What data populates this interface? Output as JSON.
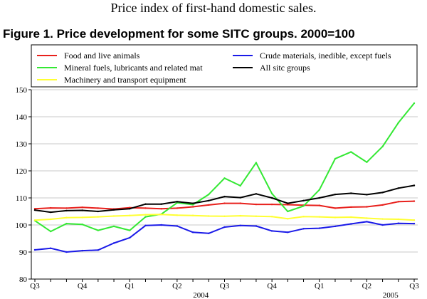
{
  "page": {
    "caption": "Price index of first-hand domestic sales.",
    "figure_title": "Figure 1. Price development for some SITC groups. 2000=100"
  },
  "chart_data": {
    "type": "line",
    "title": "Figure 1. Price development for some SITC groups. 2000=100",
    "xlabel": "",
    "ylabel": "",
    "ylim": [
      80,
      150
    ],
    "yticks": [
      80,
      90,
      100,
      110,
      120,
      130,
      140,
      150
    ],
    "grid": true,
    "legend_position": "top",
    "x": [
      "2003-09",
      "2003-10",
      "2003-11",
      "2003-12",
      "2004-01",
      "2004-02",
      "2004-03",
      "2004-04",
      "2004-05",
      "2004-06",
      "2004-07",
      "2004-08",
      "2004-09",
      "2004-10",
      "2004-11",
      "2004-12",
      "2005-01",
      "2005-02",
      "2005-03",
      "2005-04",
      "2005-05",
      "2005-06",
      "2005-07",
      "2005-08",
      "2005-09"
    ],
    "quarter_labels": [
      {
        "index": 0,
        "label": "Q3"
      },
      {
        "index": 3,
        "label": "Q4"
      },
      {
        "index": 6,
        "label": "Q1"
      },
      {
        "index": 9,
        "label": "Q2"
      },
      {
        "index": 12,
        "label": "Q3"
      },
      {
        "index": 15,
        "label": "Q4"
      },
      {
        "index": 18,
        "label": "Q1"
      },
      {
        "index": 21,
        "label": "Q2"
      },
      {
        "index": 24,
        "label": "Q3"
      }
    ],
    "year_labels": [
      {
        "index": 10.5,
        "label": "2004"
      },
      {
        "index": 22.5,
        "label": "2005"
      }
    ],
    "series": [
      {
        "name": "Food and live animals",
        "color": "#e8201c",
        "values": [
          106.0,
          106.3,
          106.2,
          106.5,
          106.2,
          105.9,
          106.4,
          106.2,
          106.0,
          106.2,
          106.7,
          107.4,
          108.0,
          108.0,
          107.6,
          107.6,
          107.5,
          107.3,
          107.2,
          106.2,
          106.6,
          106.7,
          107.4,
          108.6,
          108.8
        ]
      },
      {
        "name": "Mineral fuels, lubricants and related mat",
        "color": "#33e833",
        "values": [
          101.6,
          97.6,
          100.5,
          100.2,
          98.0,
          99.5,
          98.0,
          103.0,
          104.0,
          108.2,
          107.5,
          111.3,
          117.3,
          114.5,
          123.0,
          111.6,
          105.0,
          107.0,
          113.0,
          124.5,
          127.0,
          123.2,
          129.0,
          137.8,
          145.0
        ]
      },
      {
        "name": "Machinery and transport equipment",
        "color": "#ffff33",
        "values": [
          101.8,
          102.1,
          102.7,
          102.8,
          103.0,
          103.3,
          103.5,
          103.8,
          103.9,
          103.6,
          103.5,
          103.3,
          103.2,
          103.4,
          103.2,
          103.1,
          102.3,
          103.1,
          103.0,
          102.8,
          102.9,
          102.5,
          102.2,
          102.1,
          101.8
        ]
      },
      {
        "name": "Crude materials, inedible, except fuels",
        "color": "#1a1ae8",
        "values": [
          90.8,
          91.4,
          90.0,
          90.5,
          90.7,
          93.3,
          95.3,
          99.8,
          100.0,
          99.6,
          97.3,
          96.9,
          99.2,
          99.8,
          99.6,
          97.8,
          97.3,
          98.6,
          98.8,
          99.5,
          100.4,
          101.2,
          100.0,
          100.6,
          100.5
        ]
      },
      {
        "name": "All sitc groups",
        "color": "#000000",
        "values": [
          105.5,
          104.7,
          105.3,
          105.4,
          105.0,
          105.6,
          106.0,
          107.7,
          107.7,
          108.6,
          108.0,
          109.0,
          110.5,
          110.1,
          111.5,
          110.0,
          108.0,
          109.0,
          110.0,
          111.3,
          111.7,
          111.2,
          112.0,
          113.6,
          114.6
        ]
      }
    ]
  }
}
